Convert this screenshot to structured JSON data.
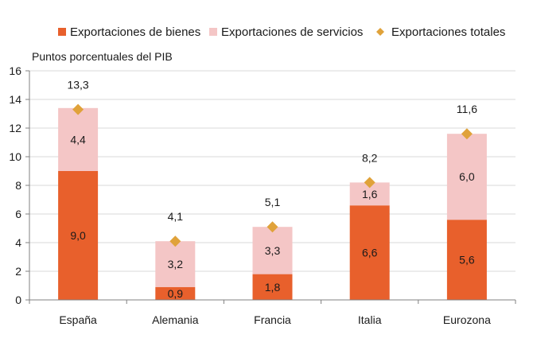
{
  "chart_data": {
    "type": "bar",
    "stacked": true,
    "ylabel": "Puntos porcentuales del PIB",
    "ylim": [
      0,
      16
    ],
    "yticks": [
      0,
      2,
      4,
      6,
      8,
      10,
      12,
      14,
      16
    ],
    "grid": true,
    "legend_position": "top",
    "categories": [
      "España",
      "Alemania",
      "Francia",
      "Italia",
      "Eurozona"
    ],
    "series": [
      {
        "name": "Exportaciones de bienes",
        "kind": "bar",
        "color": "#e8602c",
        "values": [
          9.0,
          0.9,
          1.8,
          6.6,
          5.6
        ],
        "labels": [
          "9,0",
          "0,9",
          "1,8",
          "6,6",
          "5,6"
        ]
      },
      {
        "name": "Exportaciones de servicios",
        "kind": "bar",
        "color": "#f4c6c6",
        "values": [
          4.4,
          3.2,
          3.3,
          1.6,
          6.0
        ],
        "labels": [
          "4,4",
          "3,2",
          "3,3",
          "1,6",
          "6,0"
        ]
      },
      {
        "name": "Exportaciones totales",
        "kind": "marker",
        "color": "#e0a23a",
        "values": [
          13.3,
          4.1,
          5.1,
          8.2,
          11.6
        ],
        "labels": [
          "13,3",
          "4,1",
          "5,1",
          "8,2",
          "11,6"
        ]
      }
    ]
  }
}
